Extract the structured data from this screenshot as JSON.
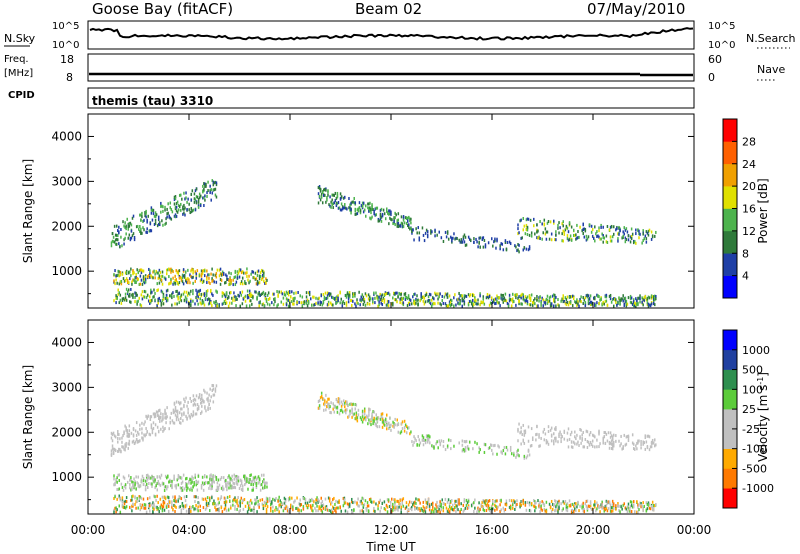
{
  "header": {
    "station": "Goose Bay (fitACF)",
    "beam": "Beam 02",
    "date": "07/May/2010"
  },
  "strip_labels": {
    "nsky": "N.Sky",
    "nsky_ticks": [
      "10^5",
      "10^0"
    ],
    "nsearch": "N.Search",
    "nsearch_ticks": [
      "10^5",
      "10^0"
    ],
    "freq": "Freq.",
    "freq_unit": "[MHz]",
    "freq_ticks": [
      "18",
      "8"
    ],
    "nave": "Nave",
    "nave_ticks": [
      "60",
      "0"
    ],
    "cpid": "CPID",
    "cpid_text": "themis (tau) 3310"
  },
  "colors": {
    "power": [
      "#0000ff",
      "#1f3fa6",
      "#2f7a3a",
      "#4db34d",
      "#e0e000",
      "#f0a000",
      "#ff6000",
      "#ff0000"
    ],
    "velocity": [
      "#ff0000",
      "#ff7a00",
      "#ffaa00",
      "#c0c0c0",
      "#c0c0c0",
      "#5ccc3a",
      "#2e8f4f",
      "#2040a0",
      "#0000ff"
    ]
  },
  "chart_data": [
    {
      "type": "heatmap",
      "name": "power",
      "ylabel": "Slant Range [km]",
      "xlabel": "",
      "xlim": [
        0,
        24
      ],
      "ylim": [
        180,
        4500
      ],
      "x_ticks": [
        "00:00",
        "04:00",
        "08:00",
        "12:00",
        "16:00",
        "20:00",
        "00:00"
      ],
      "y_ticks": [
        1000,
        2000,
        3000,
        4000
      ],
      "colorbar": {
        "label": "Power [dB]",
        "ticks": [
          "4",
          "8",
          "12",
          "16",
          "20",
          "24",
          "28"
        ],
        "min": 0,
        "max": 32
      },
      "scatter_regions": [
        {
          "x0": 0.9,
          "x1": 5.1,
          "y0": 1450,
          "y1": 2000,
          "y2": 2600,
          "y3": 3100,
          "density": 0.55,
          "level": [
            1,
            3
          ]
        },
        {
          "x0": 9.1,
          "x1": 12.8,
          "y0": 2500,
          "y1": 2900,
          "y2": 1900,
          "y3": 2200,
          "density": 0.5,
          "level": [
            1,
            3
          ]
        },
        {
          "x0": 12.8,
          "x1": 17.5,
          "y0": 1700,
          "y1": 2000,
          "y2": 1400,
          "y3": 1600,
          "density": 0.2,
          "level": [
            1,
            2
          ]
        },
        {
          "x0": 17.0,
          "x1": 22.5,
          "y0": 1700,
          "y1": 2200,
          "y2": 1600,
          "y3": 1900,
          "density": 0.35,
          "level": [
            1,
            4
          ]
        },
        {
          "x0": 1.0,
          "x1": 7.1,
          "y0": 700,
          "y1": 1050,
          "y2": 700,
          "y3": 1050,
          "density": 0.45,
          "level": [
            1,
            5
          ]
        },
        {
          "x0": 1.0,
          "x1": 22.5,
          "y0": 220,
          "y1": 600,
          "y2": 220,
          "y3": 450,
          "density": 0.4,
          "level": [
            1,
            4
          ]
        }
      ]
    },
    {
      "type": "heatmap",
      "name": "velocity",
      "ylabel": "Slant Range [km]",
      "xlabel": "Time UT",
      "xlim": [
        0,
        24
      ],
      "ylim": [
        180,
        4500
      ],
      "x_ticks": [
        "00:00",
        "04:00",
        "08:00",
        "12:00",
        "16:00",
        "20:00",
        "00:00"
      ],
      "y_ticks": [
        1000,
        2000,
        3000,
        4000
      ],
      "colorbar": {
        "label": "Velocity [m s^-1]",
        "ticks": [
          "1000",
          "500",
          "100",
          "25",
          "-25",
          "-100",
          "-500",
          "-1000"
        ]
      },
      "scatter_regions": [
        {
          "x0": 0.9,
          "x1": 5.1,
          "y0": 1450,
          "y1": 2000,
          "y2": 2600,
          "y3": 3100,
          "density": 0.55,
          "level": [
            3,
            4
          ]
        },
        {
          "x0": 9.1,
          "x1": 12.8,
          "y0": 2500,
          "y1": 2900,
          "y2": 1900,
          "y3": 2200,
          "density": 0.5,
          "level": [
            2,
            5
          ]
        },
        {
          "x0": 12.8,
          "x1": 17.5,
          "y0": 1700,
          "y1": 2000,
          "y2": 1400,
          "y3": 1600,
          "density": 0.2,
          "level": [
            3,
            5
          ]
        },
        {
          "x0": 17.0,
          "x1": 22.5,
          "y0": 1700,
          "y1": 2200,
          "y2": 1600,
          "y3": 1900,
          "density": 0.35,
          "level": [
            3,
            4
          ]
        },
        {
          "x0": 1.0,
          "x1": 7.1,
          "y0": 700,
          "y1": 1050,
          "y2": 700,
          "y3": 1050,
          "density": 0.45,
          "level": [
            3,
            5
          ]
        },
        {
          "x0": 1.0,
          "x1": 22.5,
          "y0": 220,
          "y1": 600,
          "y2": 220,
          "y3": 450,
          "density": 0.4,
          "level": [
            1,
            6
          ]
        }
      ]
    }
  ]
}
